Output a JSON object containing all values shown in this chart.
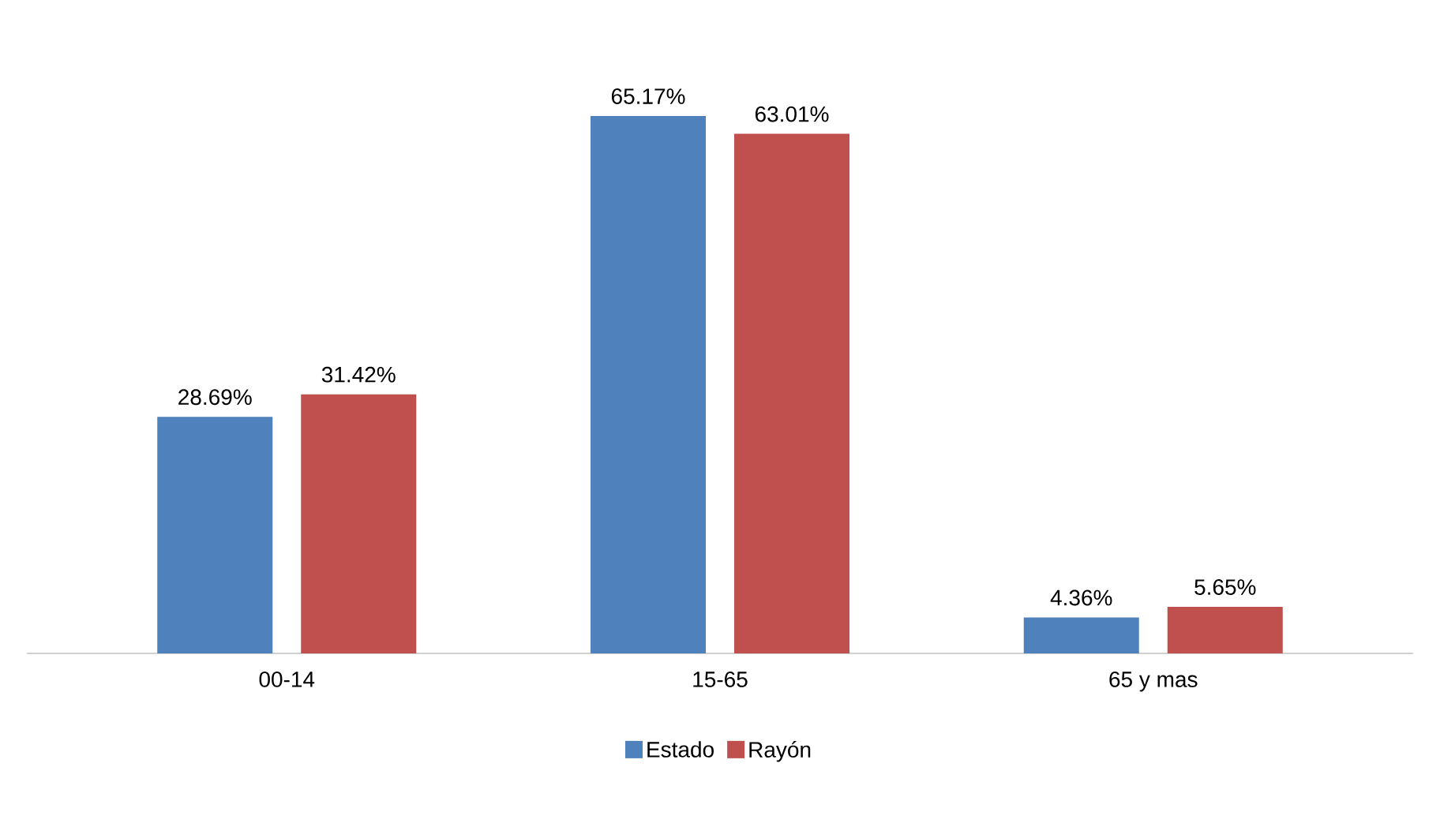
{
  "chart_data": {
    "type": "bar",
    "categories": [
      "00-14",
      "15-65",
      "65 y mas"
    ],
    "series": [
      {
        "name": "Estado",
        "color": "#4f81bd",
        "values": [
          28.69,
          65.17,
          4.36
        ],
        "value_labels": [
          "28.69%",
          "65.17%",
          "4.36%"
        ]
      },
      {
        "name": "Rayón",
        "color": "#c0504d",
        "values": [
          31.42,
          63.01,
          5.65
        ],
        "value_labels": [
          "31.42%",
          "63.01%",
          "5.65%"
        ]
      }
    ],
    "legend": "bottom",
    "tick_labels": "x"
  }
}
